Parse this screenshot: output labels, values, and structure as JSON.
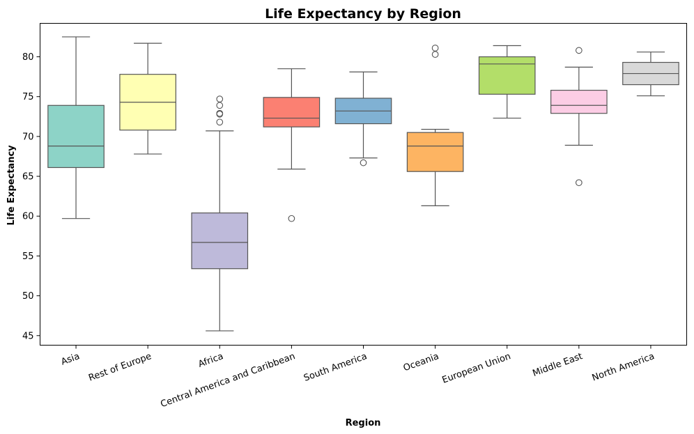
{
  "chart_data": {
    "type": "box",
    "title": "Life Expectancy by Region",
    "xlabel": "Region",
    "ylabel": "Life Expectancy",
    "ylim": [
      43.8,
      84.2
    ],
    "yticks": [
      45,
      50,
      55,
      60,
      65,
      70,
      75,
      80
    ],
    "categories": [
      "Asia",
      "Rest of Europe",
      "Africa",
      "Central America and Caribbean",
      "South America",
      "Oceania",
      "European Union",
      "Middle East",
      "North America"
    ],
    "boxes": [
      {
        "category": "Asia",
        "color": "#8dd3c7",
        "whisker_low": 59.7,
        "q1": 66.1,
        "median": 68.8,
        "q3": 73.9,
        "whisker_high": 82.5,
        "outliers": []
      },
      {
        "category": "Rest of Europe",
        "color": "#ffffb3",
        "whisker_low": 67.8,
        "q1": 70.8,
        "median": 74.3,
        "q3": 77.8,
        "whisker_high": 81.7,
        "outliers": []
      },
      {
        "category": "Africa",
        "color": "#bebada",
        "whisker_low": 45.6,
        "q1": 53.4,
        "median": 56.7,
        "q3": 60.4,
        "whisker_high": 70.7,
        "outliers": [
          71.8,
          72.8,
          72.9,
          73.9,
          74.7
        ]
      },
      {
        "category": "Central America and Caribbean",
        "color": "#fb8072",
        "whisker_low": 65.9,
        "q1": 71.2,
        "median": 72.3,
        "q3": 74.9,
        "whisker_high": 78.5,
        "outliers": [
          59.7
        ]
      },
      {
        "category": "South America",
        "color": "#80b1d3",
        "whisker_low": 67.3,
        "q1": 71.6,
        "median": 73.2,
        "q3": 74.8,
        "whisker_high": 78.1,
        "outliers": [
          66.7
        ]
      },
      {
        "category": "Oceania",
        "color": "#fdb462",
        "whisker_low": 61.3,
        "q1": 65.6,
        "median": 68.8,
        "q3": 70.5,
        "whisker_high": 70.9,
        "outliers": [
          80.3,
          81.1
        ]
      },
      {
        "category": "European Union",
        "color": "#b3de69",
        "whisker_low": 72.3,
        "q1": 75.3,
        "median": 79.1,
        "q3": 80.0,
        "whisker_high": 81.4,
        "outliers": []
      },
      {
        "category": "Middle East",
        "color": "#fccde5",
        "whisker_low": 68.9,
        "q1": 72.9,
        "median": 73.9,
        "q3": 75.8,
        "whisker_high": 78.7,
        "outliers": [
          64.2,
          80.8
        ]
      },
      {
        "category": "North America",
        "color": "#d9d9d9",
        "whisker_low": 75.1,
        "q1": 76.5,
        "median": 77.9,
        "q3": 79.3,
        "whisker_high": 80.6,
        "outliers": []
      }
    ],
    "grid": false,
    "legend": "none"
  }
}
